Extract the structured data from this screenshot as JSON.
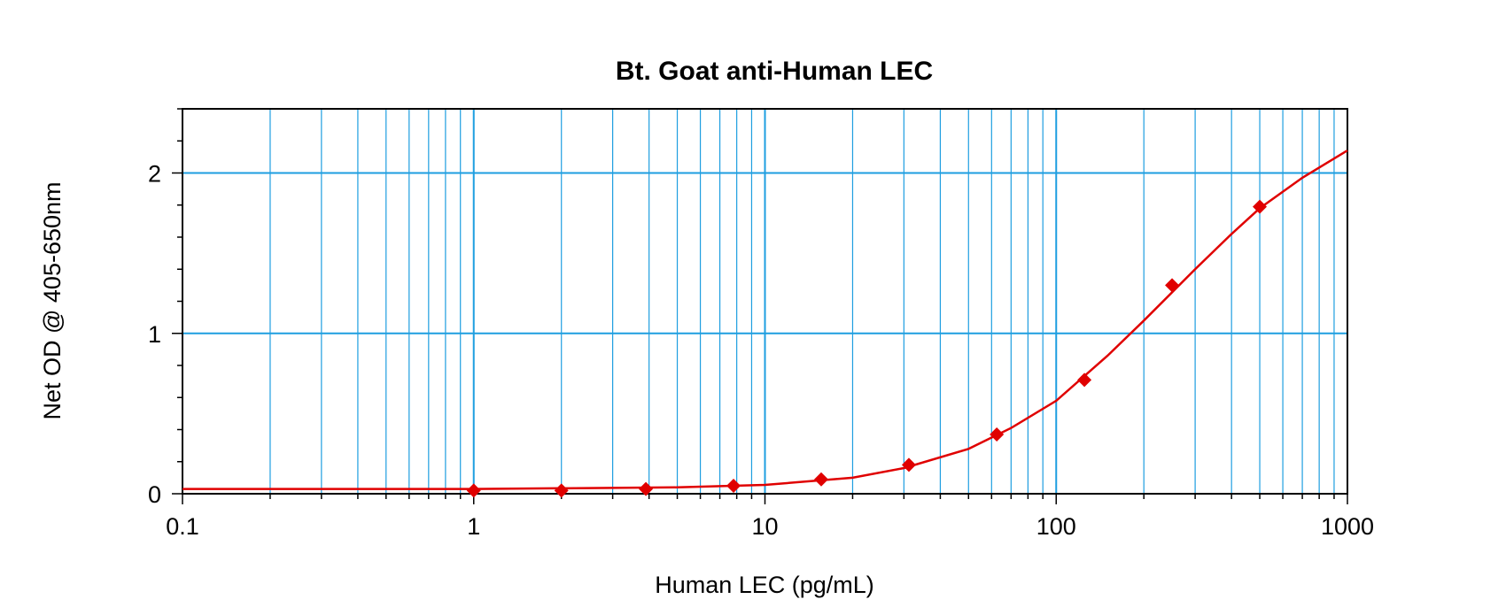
{
  "chart_data": {
    "type": "scatter",
    "title": "Bt. Goat anti-Human LEC",
    "xlabel": "Human LEC (pg/mL)",
    "ylabel": "Net OD @ 405-650nm",
    "xscale": "log",
    "xlim": [
      0.1,
      1000
    ],
    "ylim": [
      0,
      2.4
    ],
    "grid": true,
    "x_ticks": [
      0.1,
      1,
      10,
      100,
      1000
    ],
    "x_tick_labels": [
      "0.1",
      "1",
      "10",
      "100",
      "1000"
    ],
    "y_ticks": [
      0,
      1,
      2
    ],
    "y_tick_labels": [
      "0",
      "1",
      "2"
    ],
    "series": [
      {
        "marker": "diamond",
        "color": "#e00000",
        "x": [
          1,
          2,
          3.9,
          7.8,
          15.6,
          31.2,
          62.5,
          125,
          250,
          500
        ],
        "y": [
          0.02,
          0.02,
          0.03,
          0.05,
          0.09,
          0.18,
          0.37,
          0.71,
          1.3,
          1.79
        ]
      }
    ],
    "fit_curve": {
      "color": "#e00000",
      "x": [
        0.1,
        1,
        5,
        10,
        20,
        30,
        50,
        70,
        100,
        150,
        200,
        300,
        400,
        500,
        700,
        1000
      ],
      "y": [
        0.03,
        0.03,
        0.04,
        0.055,
        0.1,
        0.16,
        0.28,
        0.41,
        0.58,
        0.86,
        1.08,
        1.4,
        1.62,
        1.78,
        1.97,
        2.14
      ]
    }
  }
}
